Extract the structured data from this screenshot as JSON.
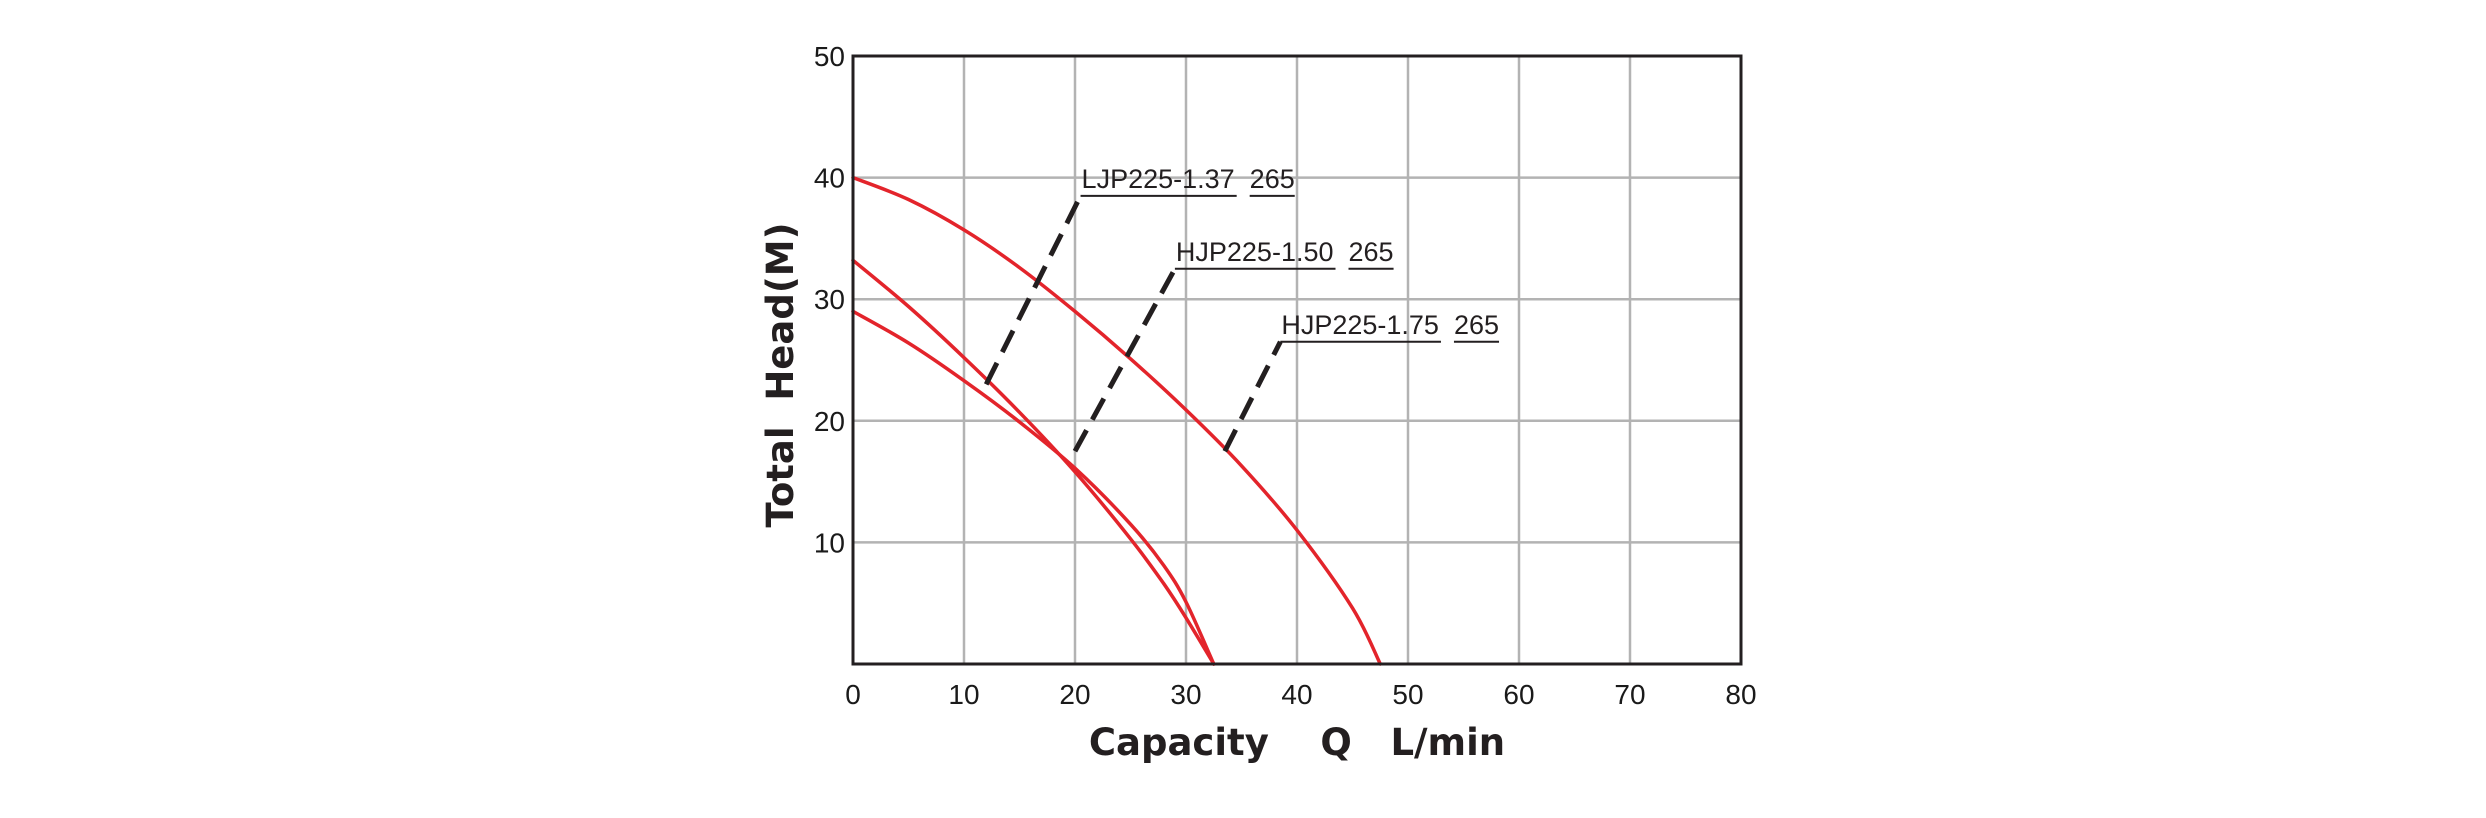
{
  "chart_data": {
    "type": "line",
    "title": "",
    "xlabel": "Capacity    Q   L/min",
    "ylabel": "Total  Head(M)",
    "xlim": [
      0,
      80
    ],
    "ylim": [
      0,
      50
    ],
    "x_ticks": [
      0,
      10,
      20,
      30,
      40,
      50,
      60,
      70,
      80
    ],
    "y_ticks": [
      10,
      20,
      30,
      40,
      50
    ],
    "grid": true,
    "series_color": "#e3242b",
    "grid_color": "#b3b3b3",
    "axis_color": "#231f20",
    "annotation_color": "#231f20",
    "series": [
      {
        "x": [
          0,
          5,
          10,
          15,
          20,
          25,
          30,
          35,
          40,
          45,
          47.5
        ],
        "y": [
          40,
          38.2,
          35.7,
          32.6,
          29,
          25.1,
          20.9,
          16.3,
          11,
          4.6,
          0
        ]
      },
      {
        "x": [
          0,
          5,
          10,
          15,
          20,
          25,
          28,
          30,
          32.5
        ],
        "y": [
          33.2,
          29.4,
          25.2,
          20.7,
          15.8,
          10.3,
          6.6,
          3.8,
          0
        ]
      },
      {
        "x": [
          0,
          5,
          10,
          15,
          20,
          25,
          28,
          30,
          32.5
        ],
        "y": [
          29,
          26.4,
          23.3,
          19.9,
          16.1,
          11.5,
          8.1,
          5.1,
          0
        ]
      }
    ],
    "annotations": [
      {
        "model": "LJP225-1.37",
        "number": "265",
        "from": [
          12,
          23
        ],
        "to": [
          20.5,
          38.5
        ]
      },
      {
        "model": "HJP225-1.50",
        "number": "265",
        "from": [
          20,
          17.5
        ],
        "to": [
          29,
          32.5
        ]
      },
      {
        "model": "HJP225-1.75",
        "number": "265",
        "from": [
          33.5,
          17.5
        ],
        "to": [
          38.5,
          26.5
        ]
      }
    ]
  }
}
